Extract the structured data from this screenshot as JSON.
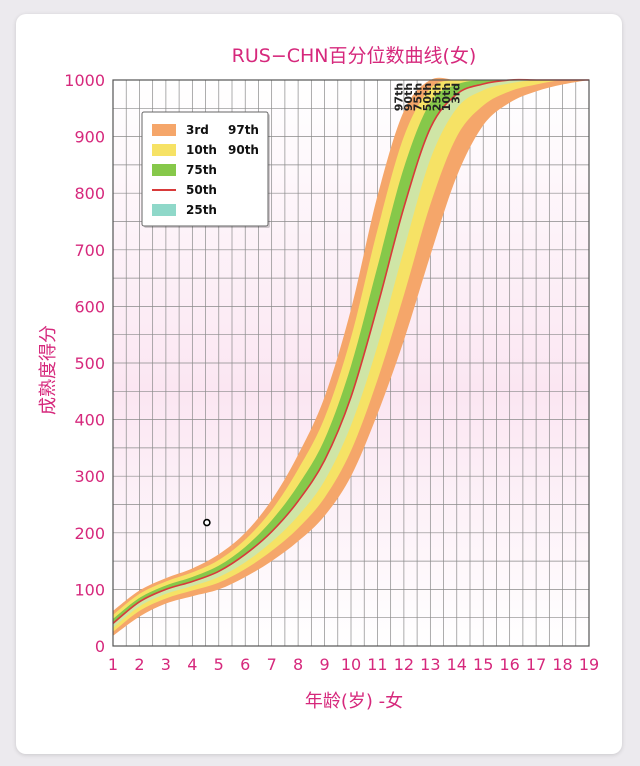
{
  "chart_data": {
    "type": "area",
    "title": "RUS−CHN百分位数曲线(女)",
    "xlabel": "年龄(岁) -女",
    "ylabel": "成熟度得分",
    "xlim": [
      1,
      19
    ],
    "ylim": [
      0,
      1000
    ],
    "x_ticks": [
      "1",
      "2",
      "3",
      "4",
      "5",
      "6",
      "7",
      "8",
      "9",
      "10",
      "11",
      "12",
      "13",
      "14",
      "15",
      "16",
      "17",
      "18",
      "19"
    ],
    "y_ticks": [
      "0",
      "100",
      "200",
      "300",
      "400",
      "500",
      "600",
      "700",
      "800",
      "900",
      "1000"
    ],
    "grid": true,
    "legend_position": "top-left",
    "x": [
      1,
      2,
      3,
      4,
      5,
      6,
      7,
      8,
      9,
      10,
      11,
      12,
      13,
      14,
      15,
      16,
      17,
      18,
      19
    ],
    "series": [
      {
        "name": "3rd",
        "values": [
          18,
          52,
          75,
          88,
          100,
          122,
          150,
          185,
          230,
          300,
          410,
          540,
          690,
          830,
          920,
          960,
          980,
          992,
          1000
        ]
      },
      {
        "name": "10th",
        "values": [
          25,
          62,
          84,
          98,
          112,
          136,
          168,
          208,
          262,
          345,
          470,
          620,
          780,
          900,
          955,
          980,
          992,
          1000,
          1000
        ]
      },
      {
        "name": "25th",
        "values": [
          32,
          70,
          92,
          106,
          122,
          148,
          184,
          230,
          292,
          390,
          530,
          700,
          860,
          950,
          982,
          994,
          1000,
          1000,
          1000
        ]
      },
      {
        "name": "50th",
        "values": [
          40,
          78,
          100,
          114,
          132,
          162,
          202,
          256,
          328,
          440,
          600,
          775,
          915,
          975,
          993,
          1000,
          1000,
          1000,
          1000
        ]
      },
      {
        "name": "75th",
        "values": [
          48,
          85,
          107,
          122,
          142,
          175,
          222,
          284,
          365,
          495,
          670,
          845,
          960,
          992,
          1000,
          1000,
          1000,
          1000,
          1000
        ]
      },
      {
        "name": "90th",
        "values": [
          55,
          92,
          114,
          130,
          152,
          188,
          240,
          312,
          403,
          545,
          735,
          900,
          985,
          1000,
          1000,
          1000,
          1000,
          1000,
          1000
        ]
      },
      {
        "name": "97th",
        "values": [
          62,
          98,
          120,
          137,
          162,
          200,
          258,
          338,
          440,
          595,
          795,
          945,
          1000,
          1000,
          1000,
          1000,
          1000,
          1000,
          1000
        ]
      }
    ],
    "end_labels": [
      "97th",
      "90th",
      "75th",
      "50th",
      "25th",
      "10th",
      "3rd"
    ],
    "marker": {
      "x": 4.55,
      "y": 218
    },
    "legend": [
      {
        "labels": [
          "3rd",
          "97th"
        ],
        "color": "#f5a66a"
      },
      {
        "labels": [
          "10th",
          "90th"
        ],
        "color": "#f6e265"
      },
      {
        "labels": [
          "75th"
        ],
        "color": "#86c84a"
      },
      {
        "labels": [
          "50th"
        ],
        "color": "#d83a3a"
      },
      {
        "labels": [
          "25th"
        ],
        "color": "#8fd8c9"
      }
    ],
    "colors": {
      "band_3_97": "#f5a66a",
      "band_10_90": "#f6e265",
      "band_25_50": "#cfe5a6",
      "band_50_75": "#86c84a",
      "median_line": "#d83a3a",
      "text": "#d6287c"
    }
  }
}
